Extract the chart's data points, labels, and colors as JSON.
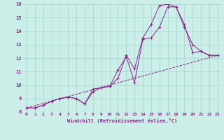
{
  "xlabel": "Windchill (Refroidissement éolien,°C)",
  "background_color": "#cceee8",
  "grid_color": "#aad8d2",
  "line_color": "#882288",
  "xlim": [
    -0.5,
    23.5
  ],
  "ylim": [
    8,
    16
  ],
  "yticks": [
    8,
    9,
    10,
    11,
    12,
    13,
    14,
    15,
    16
  ],
  "xticks": [
    0,
    1,
    2,
    3,
    4,
    5,
    6,
    7,
    8,
    9,
    10,
    11,
    12,
    13,
    14,
    15,
    16,
    17,
    18,
    19,
    20,
    21,
    22,
    23
  ],
  "line1_x": [
    0,
    1,
    2,
    3,
    4,
    5,
    6,
    7,
    8,
    9,
    10,
    11,
    12,
    13,
    14,
    15,
    16,
    17,
    18,
    19,
    20,
    21,
    22,
    23
  ],
  "line1_y": [
    8.3,
    8.3,
    8.5,
    8.8,
    9.0,
    9.1,
    9.0,
    8.6,
    9.7,
    9.8,
    9.9,
    11.1,
    12.1,
    10.2,
    13.4,
    13.5,
    14.3,
    15.8,
    15.8,
    14.3,
    13.0,
    12.5,
    12.2,
    12.2
  ],
  "line2_x": [
    0,
    1,
    2,
    3,
    4,
    5,
    6,
    7,
    8,
    9,
    10,
    11,
    12,
    13,
    14,
    15,
    16,
    17,
    18,
    19,
    20,
    21,
    22,
    23
  ],
  "line2_y": [
    8.3,
    8.3,
    8.5,
    8.8,
    9.0,
    9.1,
    9.0,
    8.6,
    9.5,
    9.8,
    9.9,
    10.5,
    12.2,
    11.2,
    13.5,
    14.5,
    15.9,
    16.0,
    15.8,
    14.5,
    12.4,
    12.5,
    12.2,
    12.2
  ],
  "line3_x": [
    0,
    23
  ],
  "line3_y": [
    8.3,
    12.2
  ]
}
